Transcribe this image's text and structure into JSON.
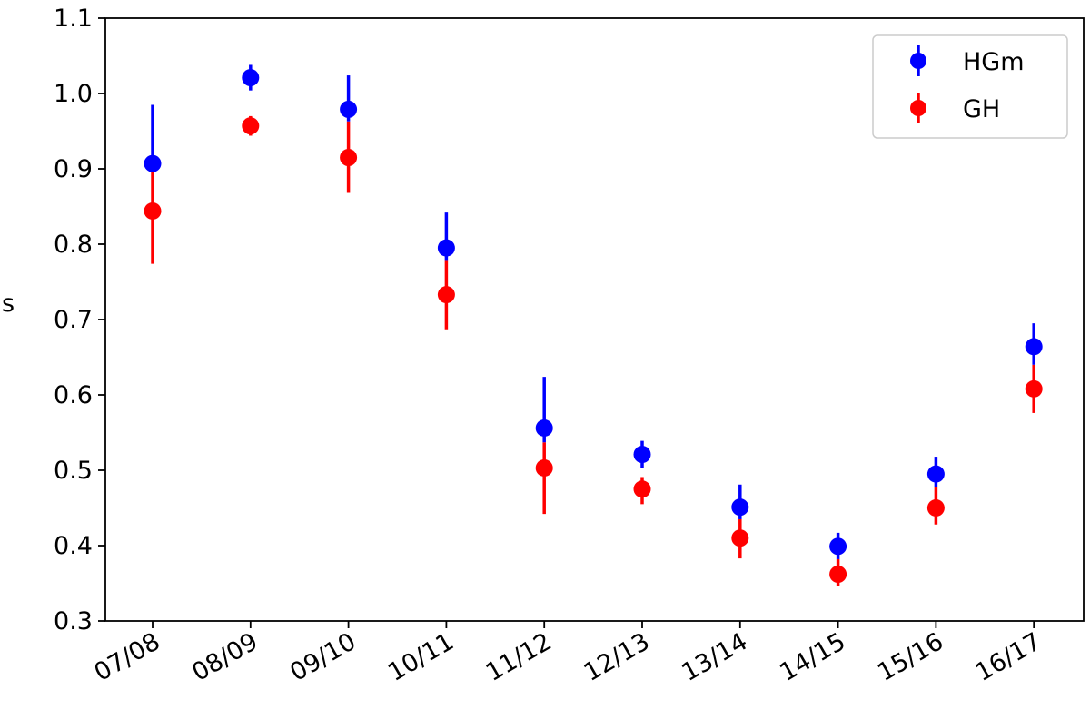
{
  "chart_data": {
    "type": "scatter",
    "title": "",
    "xlabel": "",
    "ylabel": "s",
    "categories": [
      "07/08",
      "08/09",
      "09/10",
      "10/11",
      "11/12",
      "12/13",
      "13/14",
      "14/15",
      "15/16",
      "16/17"
    ],
    "ylim": [
      0.3,
      1.1
    ],
    "yticks": [
      "0.3",
      "0.4",
      "0.5",
      "0.6",
      "0.7",
      "0.8",
      "0.9",
      "1.0",
      "1.1"
    ],
    "grid": false,
    "legend_position": "top-right",
    "series": [
      {
        "name": "HGm",
        "color": "#0000ff",
        "values": [
          0.907,
          1.021,
          0.979,
          0.795,
          0.556,
          0.521,
          0.451,
          0.399,
          0.495,
          0.664
        ],
        "err_low": [
          0.907,
          1.004,
          0.963,
          0.779,
          0.537,
          0.503,
          0.435,
          0.382,
          0.478,
          0.64
        ],
        "err_high": [
          0.985,
          1.038,
          1.024,
          0.842,
          0.624,
          0.539,
          0.481,
          0.417,
          0.518,
          0.695
        ]
      },
      {
        "name": "GH",
        "color": "#ff0000",
        "values": [
          0.844,
          0.957,
          0.915,
          0.733,
          0.503,
          0.475,
          0.41,
          0.362,
          0.45,
          0.608
        ],
        "err_low": [
          0.774,
          0.944,
          0.868,
          0.687,
          0.442,
          0.455,
          0.383,
          0.346,
          0.428,
          0.576
        ],
        "err_high": [
          0.907,
          0.97,
          0.963,
          0.779,
          0.537,
          0.491,
          0.435,
          0.382,
          0.478,
          0.64
        ]
      }
    ]
  }
}
